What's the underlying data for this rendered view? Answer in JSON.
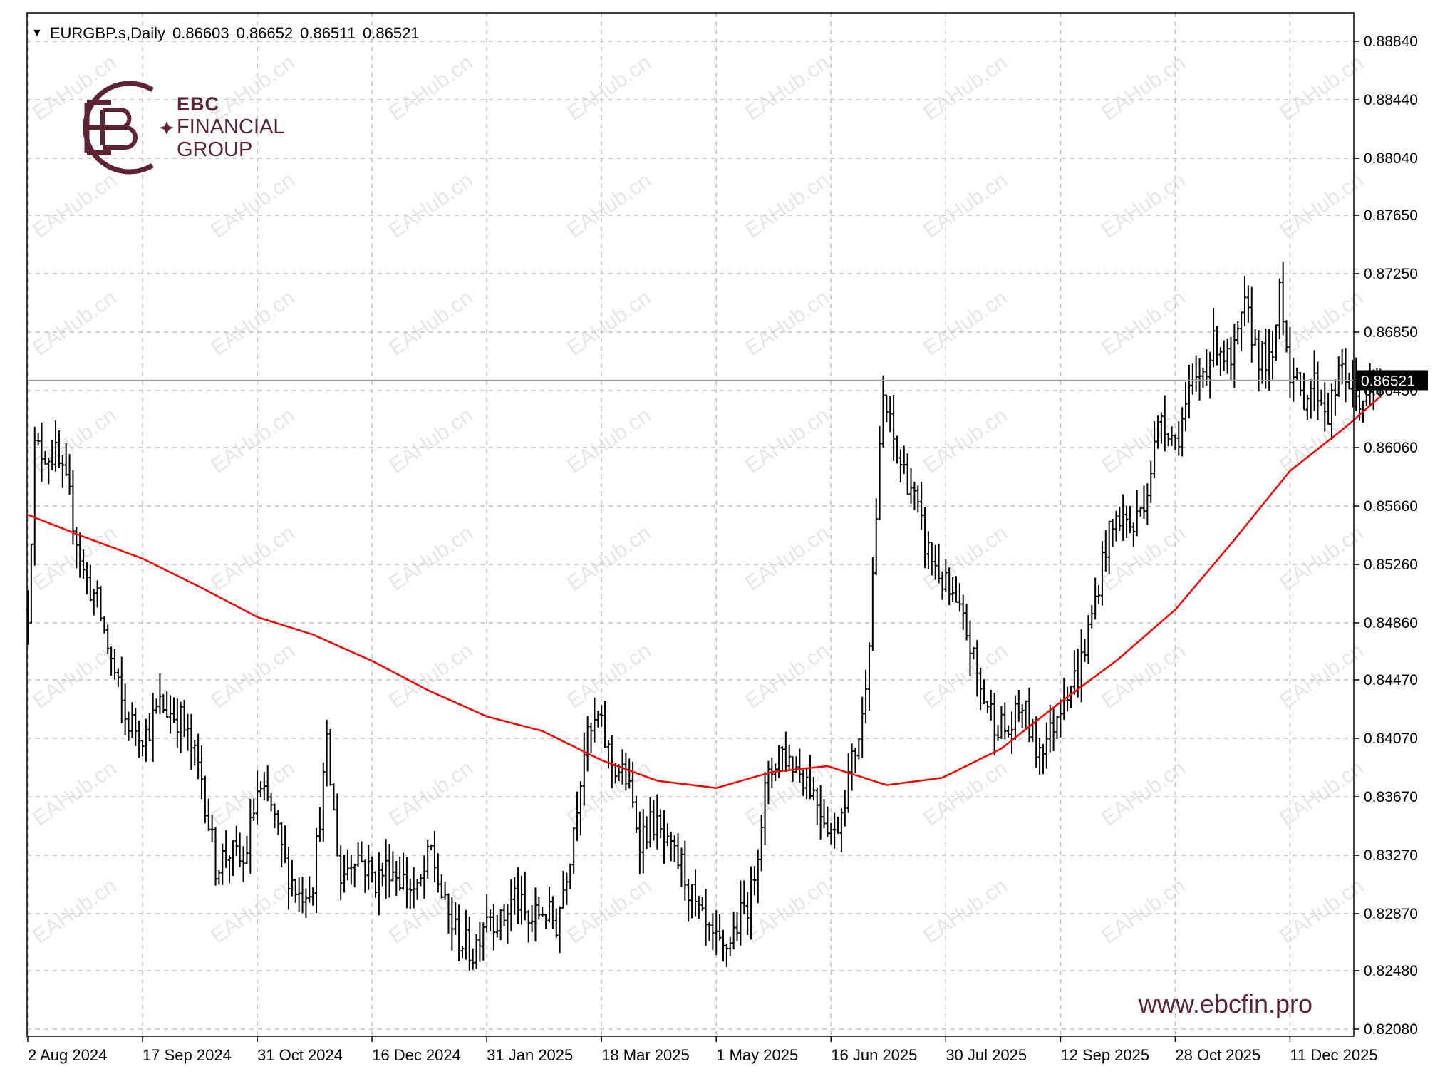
{
  "header": {
    "symbol": "EURGBP.s,Daily",
    "open": "0.86603",
    "high": "0.86652",
    "low": "0.86511",
    "close": "0.86521"
  },
  "watermark_text": "EAHub.cn",
  "logo": {
    "line1": "EBC",
    "line2": "FINANCIAL",
    "line3": "GROUP",
    "brand_color": "#5e2332"
  },
  "website": "www.ebcfin.pro",
  "colors": {
    "bars": "#000000",
    "moving_average": "#ff0000",
    "grid": "#c0c0c0",
    "current_price_bg": "#000000",
    "current_price_text": "#ffffff"
  },
  "chart_data": {
    "type": "ohlc",
    "symbol": "EURGBP.s",
    "timeframe": "Daily",
    "ylim": [
      0.8208,
      0.8904
    ],
    "y_ticks": [
      0.8884,
      0.8844,
      0.8804,
      0.8765,
      0.8725,
      0.8685,
      0.8645,
      0.8606,
      0.8566,
      0.8526,
      0.8486,
      0.8447,
      0.8407,
      0.8367,
      0.8327,
      0.8287,
      0.8248,
      0.8208
    ],
    "y_tick_labels": [
      "0.88840",
      "0.88440",
      "0.88040",
      "0.87650",
      "0.87250",
      "0.86850",
      "0.86450",
      "0.86060",
      "0.85660",
      "0.85260",
      "0.84860",
      "0.84470",
      "0.84070",
      "0.83670",
      "0.83270",
      "0.82870",
      "0.82480",
      "0.82080"
    ],
    "x_tick_labels": [
      "2 Aug 2024",
      "17 Sep 2024",
      "31 Oct 2024",
      "16 Dec 2024",
      "31 Jan 2025",
      "18 Mar 2025",
      "1 May 2025",
      "16 Jun 2025",
      "30 Jul 2025",
      "12 Sep 2025",
      "28 Oct 2025",
      "11 Dec 2025"
    ],
    "bars_per_tick": 33,
    "total_bars": 390,
    "current_price": "0.86521",
    "price_anchors": [
      [
        0,
        0.8495
      ],
      [
        2,
        0.8605
      ],
      [
        8,
        0.86
      ],
      [
        12,
        0.857
      ],
      [
        16,
        0.852
      ],
      [
        20,
        0.85
      ],
      [
        24,
        0.846
      ],
      [
        28,
        0.842
      ],
      [
        34,
        0.841
      ],
      [
        38,
        0.843
      ],
      [
        44,
        0.842
      ],
      [
        50,
        0.838
      ],
      [
        54,
        0.832
      ],
      [
        58,
        0.833
      ],
      [
        62,
        0.832
      ],
      [
        66,
        0.837
      ],
      [
        70,
        0.836
      ],
      [
        74,
        0.832
      ],
      [
        78,
        0.83
      ],
      [
        82,
        0.831
      ],
      [
        86,
        0.84
      ],
      [
        90,
        0.831
      ],
      [
        94,
        0.833
      ],
      [
        100,
        0.831
      ],
      [
        104,
        0.832
      ],
      [
        108,
        0.831
      ],
      [
        112,
        0.83
      ],
      [
        116,
        0.833
      ],
      [
        120,
        0.829
      ],
      [
        124,
        0.827
      ],
      [
        128,
        0.826
      ],
      [
        132,
        0.829
      ],
      [
        136,
        0.828
      ],
      [
        140,
        0.83
      ],
      [
        144,
        0.828
      ],
      [
        148,
        0.829
      ],
      [
        152,
        0.828
      ],
      [
        156,
        0.833
      ],
      [
        160,
        0.84
      ],
      [
        164,
        0.842
      ],
      [
        168,
        0.839
      ],
      [
        172,
        0.838
      ],
      [
        176,
        0.834
      ],
      [
        180,
        0.835
      ],
      [
        184,
        0.833
      ],
      [
        188,
        0.832
      ],
      [
        192,
        0.829
      ],
      [
        196,
        0.827
      ],
      [
        200,
        0.826
      ],
      [
        204,
        0.828
      ],
      [
        208,
        0.83
      ],
      [
        212,
        0.837
      ],
      [
        216,
        0.84
      ],
      [
        220,
        0.839
      ],
      [
        224,
        0.838
      ],
      [
        228,
        0.836
      ],
      [
        232,
        0.834
      ],
      [
        236,
        0.838
      ],
      [
        240,
        0.842
      ],
      [
        242,
        0.848
      ],
      [
        246,
        0.864
      ],
      [
        250,
        0.86
      ],
      [
        254,
        0.858
      ],
      [
        258,
        0.854
      ],
      [
        262,
        0.852
      ],
      [
        266,
        0.85
      ],
      [
        270,
        0.848
      ],
      [
        274,
        0.844
      ],
      [
        278,
        0.842
      ],
      [
        282,
        0.841
      ],
      [
        286,
        0.843
      ],
      [
        290,
        0.84
      ],
      [
        294,
        0.841
      ],
      [
        298,
        0.844
      ],
      [
        302,
        0.845
      ],
      [
        306,
        0.849
      ],
      [
        310,
        0.854
      ],
      [
        314,
        0.856
      ],
      [
        318,
        0.855
      ],
      [
        322,
        0.858
      ],
      [
        326,
        0.863
      ],
      [
        330,
        0.861
      ],
      [
        334,
        0.864
      ],
      [
        338,
        0.866
      ],
      [
        342,
        0.868
      ],
      [
        346,
        0.866
      ],
      [
        350,
        0.87
      ],
      [
        354,
        0.867
      ],
      [
        358,
        0.866
      ],
      [
        360,
        0.872
      ],
      [
        363,
        0.866
      ],
      [
        366,
        0.864
      ],
      [
        370,
        0.865
      ],
      [
        374,
        0.863
      ],
      [
        378,
        0.866
      ],
      [
        382,
        0.864
      ],
      [
        386,
        0.864
      ],
      [
        389,
        0.8652
      ]
    ],
    "moving_average": [
      [
        0,
        0.856
      ],
      [
        16,
        0.8545
      ],
      [
        33,
        0.853
      ],
      [
        50,
        0.851
      ],
      [
        66,
        0.849
      ],
      [
        82,
        0.8478
      ],
      [
        99,
        0.846
      ],
      [
        115,
        0.844
      ],
      [
        132,
        0.8422
      ],
      [
        148,
        0.8412
      ],
      [
        165,
        0.8392
      ],
      [
        181,
        0.8378
      ],
      [
        198,
        0.8373
      ],
      [
        214,
        0.8384
      ],
      [
        230,
        0.8388
      ],
      [
        247,
        0.8375
      ],
      [
        263,
        0.838
      ],
      [
        280,
        0.84
      ],
      [
        296,
        0.843
      ],
      [
        313,
        0.846
      ],
      [
        330,
        0.8495
      ],
      [
        346,
        0.854
      ],
      [
        363,
        0.859
      ],
      [
        379,
        0.862
      ],
      [
        389,
        0.8641
      ]
    ]
  }
}
